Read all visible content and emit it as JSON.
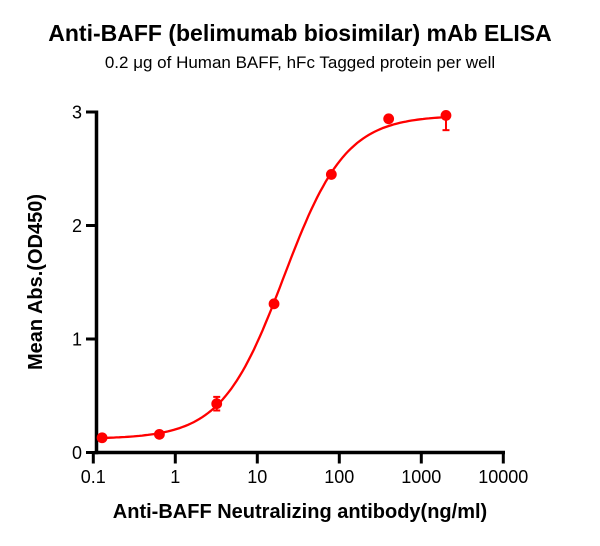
{
  "header": {
    "title": "Anti-BAFF (belimumab biosimilar) mAb ELISA",
    "subtitle": "0.2 μg of Human BAFF, hFc Tagged protein per well"
  },
  "chart_data": {
    "type": "scatter",
    "curve_type": "4PL sigmoid dose-response fit",
    "title": "Anti-BAFF (belimumab biosimilar) mAb ELISA",
    "subtitle": "0.2 μg of Human BAFF, hFc Tagged protein per well",
    "xlabel": "Anti-BAFF Neutralizing antibody(ng/ml)",
    "ylabel": "Mean Abs.(OD450)",
    "x_scale": "log10",
    "xlim": [
      0.1,
      10000
    ],
    "ylim": [
      0,
      3
    ],
    "x_ticks": [
      0.1,
      1,
      10,
      100,
      1000,
      10000
    ],
    "x_tick_labels": [
      "0.1",
      "1",
      "10",
      "100",
      "1000",
      "10000"
    ],
    "y_ticks": [
      0,
      1,
      2,
      3
    ],
    "y_tick_labels": [
      "0",
      "1",
      "2",
      "3"
    ],
    "grid": false,
    "legend": "none",
    "series_color": "#ff0000",
    "axis_color": "#000000",
    "points": {
      "x": [
        0.128,
        0.64,
        3.2,
        16,
        80,
        400,
        2000
      ],
      "y": [
        0.13,
        0.16,
        0.43,
        1.31,
        2.45,
        2.94,
        2.97
      ],
      "error_low": [
        0,
        0,
        0.06,
        0,
        0,
        0,
        0.13
      ],
      "error_high": [
        0,
        0,
        0.06,
        0,
        0,
        0,
        0
      ]
    },
    "fit": {
      "bottom": 0.12,
      "top": 2.97,
      "ec50": 21,
      "hill": 1.15
    }
  }
}
